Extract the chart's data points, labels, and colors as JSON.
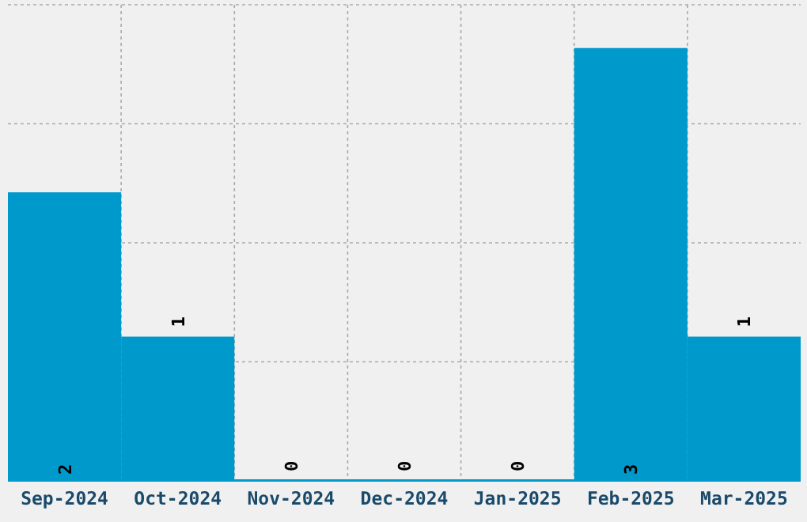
{
  "chart_data": {
    "type": "bar",
    "categories": [
      "Sep-2024",
      "Oct-2024",
      "Nov-2024",
      "Dec-2024",
      "Jan-2025",
      "Feb-2025",
      "Mar-2025"
    ],
    "values": [
      2,
      1,
      0,
      0,
      0,
      3,
      1
    ],
    "color": "#0099cc",
    "data_labels": true,
    "grid": true,
    "tick_labels": "x",
    "ylim": [
      0,
      3.3
    ],
    "yticks": [
      {
        "value": 0.825,
        "label": null
      },
      {
        "value": 1.65,
        "label": null
      },
      {
        "value": 2.475,
        "label": null
      },
      {
        "value": 3.3,
        "label": null
      }
    ]
  }
}
